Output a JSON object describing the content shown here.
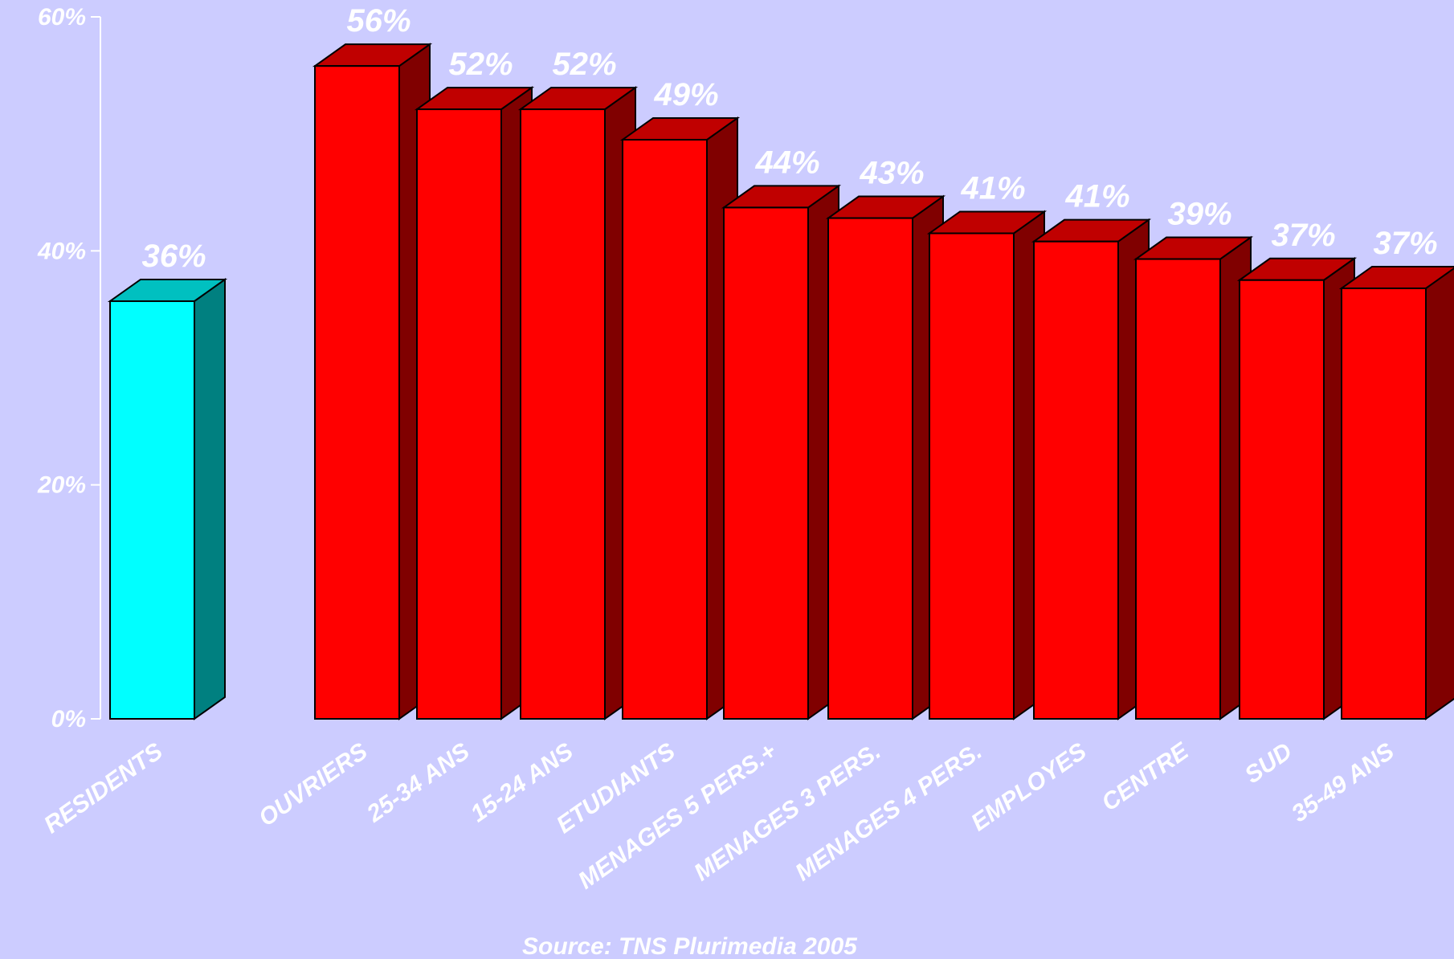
{
  "chart_data": {
    "type": "bar",
    "categories": [
      "RESIDENTS",
      "OUVRIERS",
      "25-34 ANS",
      "15-24 ANS",
      "ETUDIANTS",
      "MENAGES 5 PERS.+",
      "MENAGES 3 PERS.",
      "MENAGES 4 PERS.",
      "EMPLOYES",
      "CENTRE",
      "SUD",
      "35-49 ANS"
    ],
    "values": [
      36,
      56,
      52,
      52,
      49,
      44,
      43,
      41,
      41,
      39,
      37,
      37
    ],
    "value_labels": [
      "36%",
      "56%",
      "52%",
      "52%",
      "49%",
      "44%",
      "43%",
      "41%",
      "41%",
      "39%",
      "37%",
      "37%"
    ],
    "heights": [
      35.7,
      55.8,
      52.1,
      52.1,
      49.5,
      43.7,
      42.8,
      41.5,
      40.8,
      39.3,
      37.5,
      36.8
    ],
    "ylim": [
      0,
      60
    ],
    "yticks": [
      0,
      20,
      40,
      60
    ],
    "ytick_labels": [
      "0%",
      "20%",
      "40%",
      "60%"
    ],
    "highlight_index": 0,
    "colors": {
      "highlight_front": "#00FFFF",
      "highlight_top": "#00C0C0",
      "highlight_side": "#008080",
      "bar_front": "#FF0000",
      "bar_top": "#C00000",
      "bar_side": "#800000",
      "axis": "#FFFFFF",
      "outline": "#000000"
    },
    "xlabel": "",
    "ylabel": "",
    "grid": false,
    "legend": "none"
  },
  "source": "Source: TNS Plurimedia 2005"
}
